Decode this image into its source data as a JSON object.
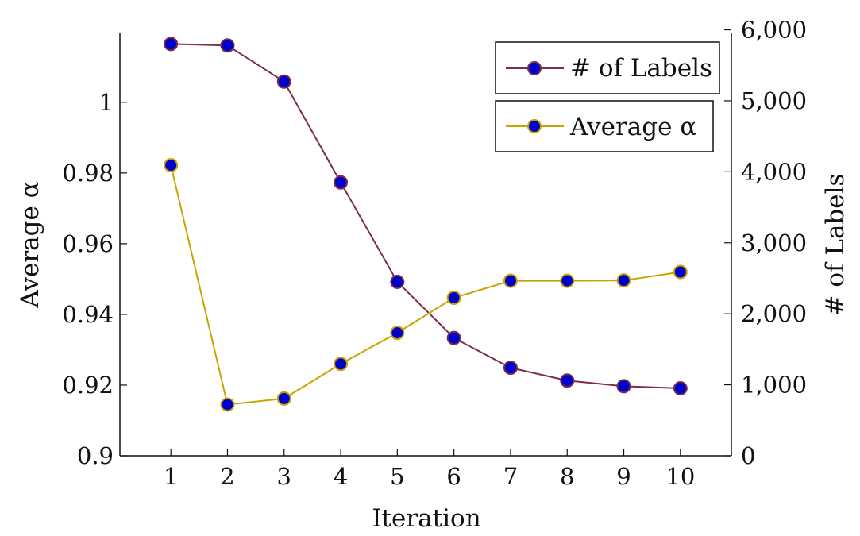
{
  "chart_data": {
    "type": "line",
    "xlabel": "Iteration",
    "ylabel": "Average α",
    "y2label": "# of Labels",
    "x": [
      1,
      2,
      3,
      4,
      5,
      6,
      7,
      8,
      9,
      10
    ],
    "x_ticks": [
      "1",
      "2",
      "3",
      "4",
      "5",
      "6",
      "7",
      "8",
      "9",
      "10"
    ],
    "xlim": [
      0.1,
      10.9
    ],
    "ylim": [
      0.9,
      1.0195
    ],
    "y_ticks": [
      "0.9",
      "0.92",
      "0.94",
      "0.96",
      "0.98",
      "1"
    ],
    "y_tick_values": [
      0.9,
      0.92,
      0.94,
      0.96,
      0.98,
      1.0
    ],
    "y2lim": [
      0,
      5950
    ],
    "y2_ticks": [
      "0",
      "1,000",
      "2,000",
      "3,000",
      "4,000",
      "5,000",
      "6,000"
    ],
    "y2_tick_values": [
      0,
      1000,
      2000,
      3000,
      4000,
      5000,
      6000
    ],
    "grid": false,
    "legend_placement": "top-right",
    "series": [
      {
        "name": "# of Labels",
        "axis": "right",
        "color": "#7b2d4a",
        "marker_fill": "#0000cc",
        "values": [
          5800,
          5780,
          5270,
          3850,
          2450,
          1660,
          1240,
          1060,
          980,
          950
        ]
      },
      {
        "name": "Average α",
        "axis": "left",
        "color": "#c8a400",
        "marker_fill": "#0000cc",
        "values": [
          0.9822,
          0.9145,
          0.9162,
          0.926,
          0.9348,
          0.9447,
          0.9495,
          0.9495,
          0.9496,
          0.952
        ]
      }
    ]
  }
}
